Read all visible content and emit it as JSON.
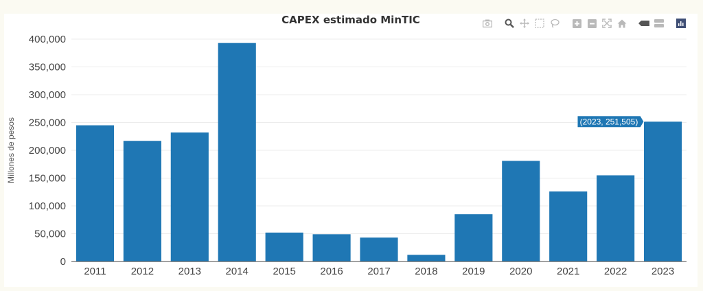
{
  "modebar": {
    "icons": [
      "camera-icon",
      "zoom-icon",
      "pan-icon",
      "box-select-icon",
      "lasso-select-icon",
      "zoom-in-icon",
      "zoom-out-icon",
      "autoscale-icon",
      "reset-axes-icon",
      "spike-lines-icon",
      "compare-hover-icon",
      "plotly-logo-icon"
    ],
    "icon_color": "#b9b9b9",
    "active_color": "#555555",
    "logo_color": "#3f4f75"
  },
  "hover": {
    "label": "(2023, 251,505)",
    "bg": "#1f77b4"
  },
  "chart_data": {
    "type": "bar",
    "title": "CAPEX estimado MinTIC",
    "xlabel": "",
    "ylabel": "Millones de pesos",
    "categories": [
      "2011",
      "2012",
      "2013",
      "2014",
      "2015",
      "2016",
      "2017",
      "2018",
      "2019",
      "2020",
      "2021",
      "2022",
      "2023"
    ],
    "values": [
      245000,
      217000,
      232000,
      393000,
      52000,
      49000,
      43000,
      12000,
      85000,
      181000,
      126000,
      155000,
      251505
    ],
    "ylim": [
      0,
      400000
    ],
    "yticks": [
      0,
      50000,
      100000,
      150000,
      200000,
      250000,
      300000,
      350000,
      400000
    ],
    "ytick_labels": [
      "0",
      "50,000",
      "100,000",
      "150,000",
      "200,000",
      "250,000",
      "300,000",
      "350,000",
      "400,000"
    ],
    "bar_color": "#1f77b4",
    "grid": true,
    "legend": "none"
  }
}
